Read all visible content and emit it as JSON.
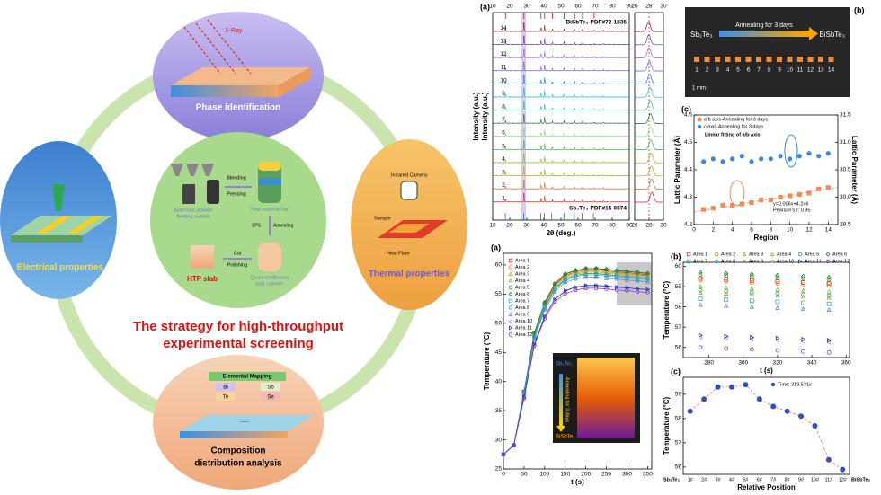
{
  "diagram": {
    "title": [
      "The strategy for high-throughput",
      "experimental screening"
    ],
    "phase": {
      "label": "Phase identification",
      "xray": "X-Ray"
    },
    "electrical": "Electrical properties",
    "thermal": {
      "label": "Thermal properties",
      "camera": "Infrared Camera",
      "sample": "Sample",
      "plate": "Heat Plate"
    },
    "composition": {
      "label": [
        "Composition",
        "distribution analysis"
      ],
      "mapping": "Elemental Mapping",
      "elements": [
        "Bi",
        "Sb",
        "Te",
        "Se"
      ],
      "dots": "...."
    },
    "process": {
      "blending": "Blending",
      "pressing": "Pressing",
      "feeder": [
        "Automatic powder",
        "feeding system"
      ],
      "bar": "Raw material bar",
      "sps": "SPS",
      "annealing": "Annealing",
      "cut": "Cut",
      "polishing": "Polishing",
      "slab": "HTP slab",
      "cylinder": [
        "Quasi-continuous",
        "bulk cylinder"
      ]
    }
  },
  "photo": {
    "label": "(b)",
    "start": "Sb₂Te₃",
    "arrow": "Annealing for 3 days",
    "end": "BiSbTe₃",
    "regions": [
      "1",
      "2",
      "3",
      "4",
      "5",
      "6",
      "7",
      "8",
      "9",
      "10",
      "11",
      "12",
      "13",
      "14"
    ],
    "scale": "1 mm"
  },
  "chart_data": [
    {
      "type": "waterfall",
      "label": "(a)",
      "ylabel": "Intensity (a.u.)",
      "xlabel": "2θ (deg.)",
      "xlim": [
        10,
        90
      ],
      "xticks": [
        10,
        20,
        30,
        40,
        50,
        60,
        70,
        80,
        90
      ],
      "zoom_xlim": [
        26,
        30
      ],
      "zoom_xticks": [
        26,
        28,
        30
      ],
      "zoom_ref": 28,
      "top_ref": "BiSbTe₃-PDF#72-1835",
      "bottom_ref": "Sb₂Te₃-PDF#15-0874",
      "top_ref_peaks": [
        17.5,
        28.3,
        38.3,
        40.4,
        45.0,
        51.8,
        58.0,
        62.6,
        69.4
      ],
      "bottom_ref_peaks": [
        17.4,
        28.2,
        38.2,
        40.3,
        44.6,
        51.7,
        57.8,
        62.4,
        69.0
      ],
      "peaks": {
        "positions": [
          17.5,
          28.3,
          38.3,
          40.4,
          45.0,
          51.8,
          58.0,
          62.6,
          69.4,
          75.0
        ],
        "heights": [
          0.3,
          1,
          0.4,
          0.6,
          0.2,
          0.25,
          0.2,
          0.15,
          0.1,
          0.1
        ]
      },
      "series": [
        {
          "name": "1",
          "color": "#e41a1c",
          "zoom_peak": 28.4
        },
        {
          "name": "2",
          "color": "#d2691e",
          "zoom_peak": 28.36
        },
        {
          "name": "3",
          "color": "#b8a000",
          "zoom_peak": 28.33
        },
        {
          "name": "4",
          "color": "#7cb518",
          "zoom_peak": 28.3
        },
        {
          "name": "5",
          "color": "#3cb043",
          "zoom_peak": 28.26
        },
        {
          "name": "6",
          "color": "#7fd37f",
          "zoom_peak": 28.22
        },
        {
          "name": "7",
          "color": "#1b6b2f",
          "zoom_peak": 28.2
        },
        {
          "name": "8",
          "color": "#20b2aa",
          "zoom_peak": 28.16
        },
        {
          "name": "9",
          "color": "#00bcd4",
          "zoom_peak": 28.12
        },
        {
          "name": "10",
          "color": "#1e6fd9",
          "zoom_peak": 28.08
        },
        {
          "name": "11",
          "color": "#6a5acd",
          "zoom_peak": 28.04
        },
        {
          "name": "12",
          "color": "#9b59b6",
          "zoom_peak": 28.0
        },
        {
          "name": "13",
          "color": "#5b2c83",
          "zoom_peak": 27.97
        },
        {
          "name": "14",
          "color": "#8b1a1a",
          "zoom_peak": 27.93
        }
      ]
    },
    {
      "type": "scatter",
      "label": "(c)",
      "xlabel": "Region",
      "ylabel": "Lattic Parameter (Å)",
      "y2label": "Lattic Parameter (Å)",
      "x": [
        1,
        2,
        3,
        4,
        5,
        6,
        7,
        8,
        9,
        10,
        11,
        12,
        13,
        14
      ],
      "xlim": [
        0,
        15
      ],
      "xticks": [
        0,
        2,
        4,
        6,
        8,
        10,
        12,
        14
      ],
      "ylim": [
        4.2,
        4.6
      ],
      "yticks": [
        4.2,
        4.3,
        4.4,
        4.5,
        4.6
      ],
      "y2lim": [
        29.5,
        31.5
      ],
      "y2ticks": [
        29.5,
        {
          "value": 30,
          "label": "30.0"
        },
        30.5,
        {
          "value": 31,
          "label": "31.0"
        },
        31.5
      ],
      "marker_fill": true,
      "series": [
        {
          "name": "a/b axis-Annealing for 3 days",
          "color": "#f08c5a",
          "marker": "square",
          "values": [
            4.255,
            4.26,
            4.27,
            4.27,
            4.275,
            4.28,
            4.29,
            4.29,
            4.3,
            4.305,
            4.31,
            4.315,
            4.33,
            4.335
          ]
        },
        {
          "name": "c axis-Annealing for 3 days",
          "color": "#3a86e0",
          "marker": "circle",
          "axis": "y2",
          "values": [
            30.65,
            30.7,
            30.65,
            30.7,
            30.75,
            30.65,
            30.7,
            30.7,
            30.75,
            30.7,
            30.75,
            30.8,
            30.75,
            30.8
          ]
        }
      ],
      "fit": {
        "name": "Linear fitting of a/b axis",
        "slope": 0.006,
        "intercept": 4.246,
        "equation": "y=0.006x+4.246",
        "pearson": "Pearson's r: 0.95"
      }
    },
    {
      "type": "line",
      "label": "(a)",
      "xlabel": "t (s)",
      "ylabel": "Temperature (°C)",
      "x": [
        0,
        25,
        50,
        75,
        100,
        125,
        150,
        175,
        200,
        225,
        250,
        275,
        300,
        325,
        350
      ],
      "xlim": [
        0,
        360
      ],
      "xticks": [
        0,
        50,
        100,
        150,
        200,
        250,
        300,
        350
      ],
      "ylim": [
        25,
        62
      ],
      "yticks": [
        25,
        30,
        35,
        40,
        45,
        50,
        55,
        60
      ],
      "inset": {
        "start": "Sb₂Te₃",
        "arrow": "Annealing for 3 days",
        "end": "BiSbTe₃"
      },
      "series": [
        {
          "name": "Area 1",
          "color": "#e41a1c",
          "marker": "square",
          "values": [
            27.5,
            29.1,
            38.2,
            48.2,
            53.3,
            56.6,
            58.2,
            58.8,
            59.2,
            59.2,
            59.0,
            58.8,
            58.7,
            58.5,
            58.3
          ]
        },
        {
          "name": "Area 2",
          "color": "#ff7f0e",
          "marker": "circle",
          "values": [
            27.5,
            29.1,
            38.1,
            48.0,
            53.2,
            56.4,
            58.0,
            58.6,
            59.0,
            59.0,
            58.8,
            58.6,
            58.5,
            58.3,
            58.2
          ]
        },
        {
          "name": "Area 3",
          "color": "#c8a000",
          "marker": "triangle",
          "values": [
            27.5,
            29.1,
            38.0,
            47.8,
            52.9,
            56.0,
            57.6,
            58.2,
            58.6,
            58.6,
            58.4,
            58.2,
            58.1,
            57.9,
            57.8
          ]
        },
        {
          "name": "Area 4",
          "color": "#7cc21c",
          "marker": "triangle",
          "values": [
            27.5,
            29.1,
            38.0,
            47.9,
            53.0,
            56.2,
            57.8,
            58.4,
            58.8,
            58.8,
            58.6,
            58.4,
            58.3,
            58.1,
            58.0
          ]
        },
        {
          "name": "Area 5",
          "color": "#2ca02c",
          "marker": "circle",
          "values": [
            27.5,
            29.1,
            38.2,
            48.3,
            53.5,
            56.8,
            58.4,
            59.0,
            59.4,
            59.4,
            59.2,
            59.0,
            58.9,
            58.7,
            58.5
          ]
        },
        {
          "name": "Area 6",
          "color": "#1b7a3a",
          "marker": "diamond",
          "values": [
            27.5,
            29.1,
            38.3,
            48.4,
            53.6,
            56.8,
            58.5,
            59.1,
            59.4,
            59.4,
            59.3,
            59.1,
            58.9,
            58.8,
            58.6
          ]
        },
        {
          "name": "Area 7",
          "color": "#2bb5b5",
          "marker": "square",
          "values": [
            27.5,
            29.1,
            37.9,
            47.6,
            52.6,
            55.8,
            57.3,
            58.0,
            58.3,
            58.3,
            58.1,
            58.0,
            57.8,
            57.6,
            57.5
          ]
        },
        {
          "name": "Area 8",
          "color": "#1f9ed8",
          "marker": "circle",
          "values": [
            27.5,
            29.1,
            37.9,
            47.7,
            52.8,
            55.9,
            57.5,
            58.2,
            58.5,
            58.5,
            58.3,
            58.2,
            58.0,
            57.8,
            57.7
          ]
        },
        {
          "name": "Area 9",
          "color": "#5b7fd8",
          "marker": "triangle",
          "values": [
            27.5,
            29.1,
            37.7,
            47.3,
            52.3,
            55.4,
            57.0,
            57.6,
            57.9,
            57.9,
            57.7,
            57.6,
            57.4,
            57.3,
            57.1
          ]
        },
        {
          "name": "Area 10",
          "color": "#8da0e0",
          "marker": "triangle-left",
          "values": [
            27.5,
            29.0,
            37.2,
            46.4,
            51.1,
            54.1,
            55.5,
            56.1,
            56.4,
            56.4,
            56.3,
            56.1,
            56.0,
            55.8,
            55.7
          ]
        },
        {
          "name": "Area 11",
          "color": "#1f2f8f",
          "marker": "triangle-right",
          "values": [
            27.5,
            29.0,
            37.3,
            46.4,
            51.2,
            54.1,
            55.6,
            56.2,
            56.5,
            56.5,
            56.4,
            56.2,
            56.1,
            55.9,
            55.8
          ]
        },
        {
          "name": "Area 12",
          "color": "#8a2be2",
          "marker": "circle",
          "values": [
            27.5,
            29.0,
            37.1,
            46.1,
            50.8,
            53.7,
            55.1,
            55.7,
            56.0,
            56.0,
            55.9,
            55.7,
            55.6,
            55.4,
            55.3
          ]
        }
      ]
    },
    {
      "type": "scatter",
      "label": "(b)",
      "xlabel": "t (s)",
      "ylabel": "Temperature (°C)",
      "x": [
        275,
        290,
        305,
        320,
        335,
        350
      ],
      "xlim": [
        265,
        362
      ],
      "xticks": [
        280,
        300,
        320,
        340,
        360
      ],
      "ylim": [
        55.5,
        60.2
      ],
      "yticks": [
        56,
        57,
        58,
        59,
        60
      ],
      "marker_fill": false,
      "series": [
        {
          "name": "Area 1",
          "color": "#e41a1c",
          "marker": "square",
          "values": [
            59.4,
            59.35,
            59.3,
            59.25,
            59.2,
            59.15
          ]
        },
        {
          "name": "Area 2",
          "color": "#ff7f0e",
          "marker": "circle",
          "values": [
            59.3,
            59.25,
            59.2,
            59.15,
            59.1,
            59.05
          ]
        },
        {
          "name": "Area 3",
          "color": "#c8a000",
          "marker": "triangle",
          "values": [
            58.7,
            58.65,
            58.6,
            58.55,
            58.5,
            58.45
          ]
        },
        {
          "name": "Area 4",
          "color": "#7cc21c",
          "marker": "triangle",
          "values": [
            59.0,
            58.95,
            58.9,
            58.85,
            58.8,
            58.75
          ]
        },
        {
          "name": "Area 5",
          "color": "#2ca02c",
          "marker": "circle",
          "values": [
            59.6,
            59.55,
            59.5,
            59.45,
            59.4,
            59.35
          ]
        },
        {
          "name": "Area 6",
          "color": "#1b7a3a",
          "marker": "diamond",
          "values": [
            59.7,
            59.65,
            59.6,
            59.55,
            59.5,
            59.45
          ]
        },
        {
          "name": "Area 7",
          "color": "#2bb5b5",
          "marker": "square",
          "values": [
            58.4,
            58.35,
            58.3,
            58.25,
            58.2,
            58.15
          ]
        },
        {
          "name": "Area 8",
          "color": "#1f9ed8",
          "marker": "circle",
          "values": [
            58.8,
            58.75,
            58.7,
            58.65,
            58.6,
            58.55
          ]
        },
        {
          "name": "Area 9",
          "color": "#5b7fd8",
          "marker": "triangle",
          "values": [
            58.1,
            58.05,
            58.0,
            57.95,
            57.9,
            57.85
          ]
        },
        {
          "name": "Area 10",
          "color": "#8da0e0",
          "marker": "triangle-left",
          "values": [
            56.5,
            56.45,
            56.4,
            56.35,
            56.3,
            56.25
          ]
        },
        {
          "name": "Area 11",
          "color": "#1f2f8f",
          "marker": "triangle-right",
          "values": [
            56.6,
            56.55,
            56.5,
            56.45,
            56.4,
            56.35
          ]
        },
        {
          "name": "Area 12",
          "color": "#8a2be2",
          "marker": "circle",
          "values": [
            56.0,
            55.95,
            55.9,
            55.85,
            55.8,
            55.75
          ]
        }
      ]
    },
    {
      "type": "line",
      "label": "(c)",
      "xlabel": "Relative Position",
      "ylabel": "Temperature (°C)",
      "categories": [
        "1#",
        "2#",
        "3#",
        "4#",
        "5#",
        "6#",
        "7#",
        "8#",
        "9#",
        "10#",
        "11#",
        "12#"
      ],
      "start": "Sb₂Te₃",
      "end": "BiSbTe₃",
      "ylim": [
        55.7,
        59.7
      ],
      "yticks": [
        56,
        57,
        58,
        59
      ],
      "series": [
        {
          "name": "Time: 313.531s",
          "color": "#3050c8",
          "line_color": "#e06060",
          "marker": "circle",
          "values": [
            58.3,
            58.8,
            59.3,
            59.3,
            59.4,
            58.8,
            58.5,
            58.3,
            58.1,
            57.7,
            56.3,
            55.9
          ]
        }
      ]
    }
  ]
}
